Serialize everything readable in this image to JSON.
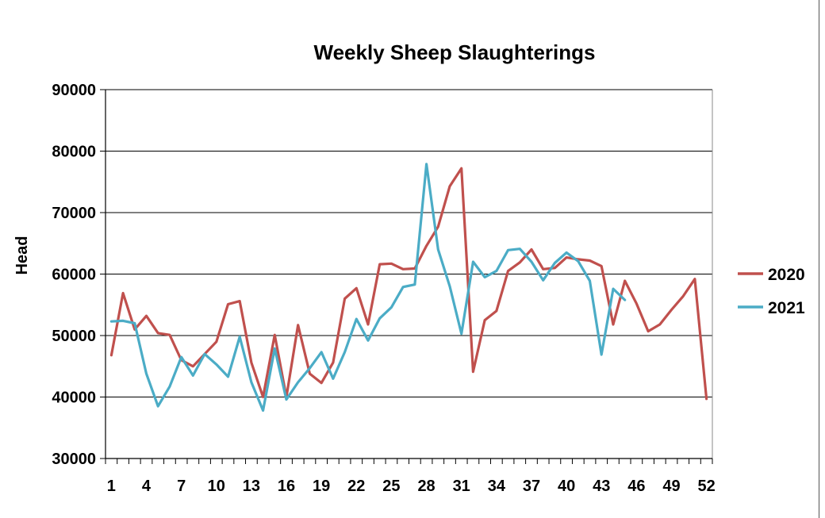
{
  "chart_data": {
    "type": "line",
    "title": "Weekly Sheep Slaughterings",
    "xlabel": "",
    "ylabel": "Head",
    "ylim": [
      30000,
      90000
    ],
    "yticks": [
      "90000",
      "80000",
      "70000",
      "60000",
      "50000",
      "40000",
      "30000"
    ],
    "xlim": [
      1,
      52
    ],
    "xticks": [
      "1",
      "4",
      "7",
      "10",
      "13",
      "16",
      "19",
      "22",
      "25",
      "28",
      "31",
      "34",
      "37",
      "40",
      "43",
      "46",
      "49",
      "52"
    ],
    "grid": "horizontal",
    "legend_position": "right",
    "series": [
      {
        "name": "2020",
        "color": "#c0504d",
        "x": [
          1,
          2,
          3,
          4,
          5,
          6,
          7,
          8,
          9,
          10,
          11,
          12,
          13,
          14,
          15,
          16,
          17,
          18,
          19,
          20,
          21,
          22,
          23,
          24,
          25,
          26,
          27,
          28,
          29,
          30,
          31,
          32,
          33,
          34,
          35,
          36,
          37,
          38,
          39,
          40,
          41,
          42,
          43,
          44,
          45,
          46,
          47,
          48,
          49,
          50,
          51,
          52
        ],
        "values": [
          46800,
          56900,
          51000,
          53200,
          50400,
          50100,
          46000,
          45000,
          47000,
          49000,
          55100,
          55600,
          45600,
          40000,
          50100,
          40000,
          51700,
          43800,
          42300,
          45600,
          56000,
          57700,
          51800,
          61600,
          61700,
          60800,
          60900,
          64600,
          67700,
          74300,
          77200,
          44100,
          52500,
          54000,
          60500,
          61900,
          64000,
          60800,
          61000,
          62700,
          62400,
          62200,
          61300,
          51800,
          58900,
          55200,
          50700,
          51800,
          54200,
          56400,
          59200,
          39700
        ]
      },
      {
        "name": "2021",
        "color": "#4bacc6",
        "x": [
          1,
          2,
          3,
          4,
          5,
          6,
          7,
          8,
          9,
          10,
          11,
          12,
          13,
          14,
          15,
          16,
          17,
          18,
          19,
          20,
          21,
          22,
          23,
          24,
          25,
          26,
          27,
          28,
          29,
          30,
          31,
          32,
          33,
          34,
          35,
          36,
          37,
          38,
          39,
          40,
          41,
          42,
          43,
          44,
          45
        ],
        "values": [
          52300,
          52400,
          52000,
          43800,
          38500,
          41700,
          46500,
          43500,
          47000,
          45300,
          43300,
          49800,
          42400,
          37800,
          47900,
          39600,
          42400,
          44700,
          47300,
          43000,
          47300,
          52700,
          49200,
          52800,
          54600,
          57900,
          58300,
          77900,
          64000,
          58000,
          50300,
          62000,
          59500,
          60500,
          63900,
          64100,
          62000,
          59000,
          61800,
          63500,
          62100,
          58900,
          46900,
          57600,
          55800
        ]
      }
    ]
  }
}
